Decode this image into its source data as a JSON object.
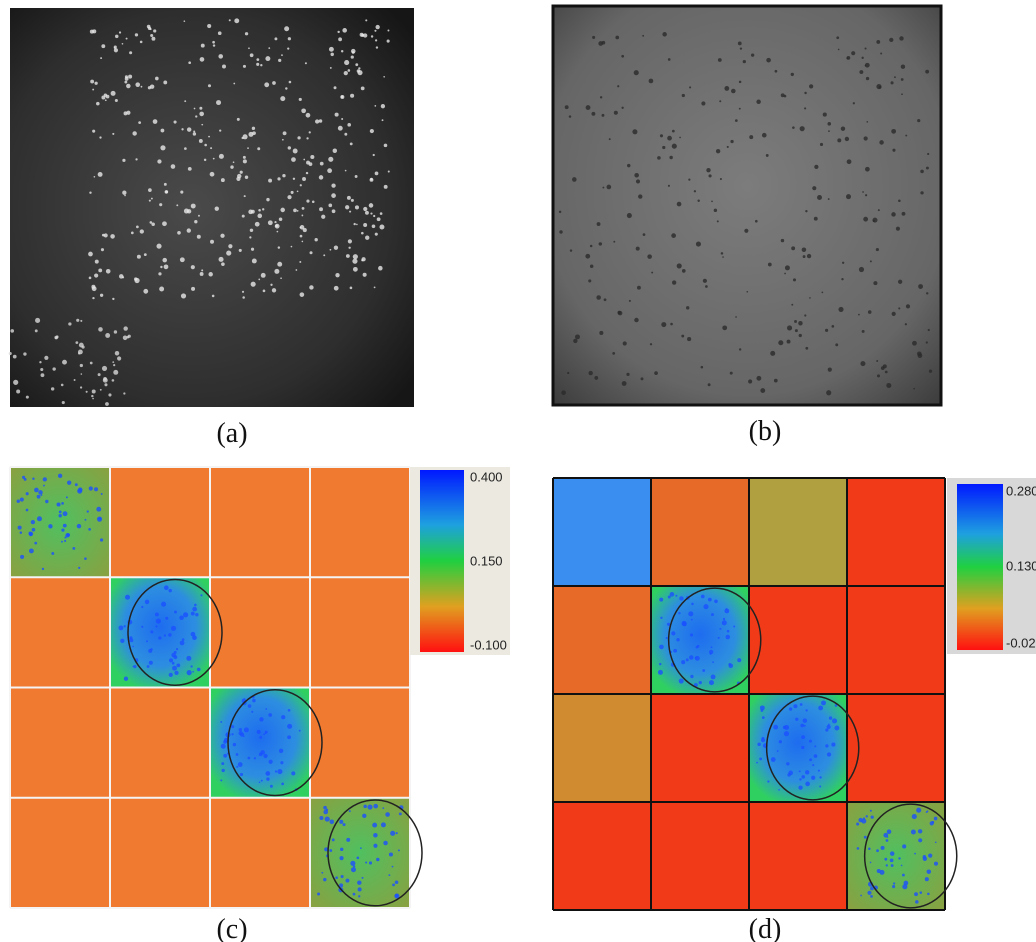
{
  "panels": [
    {
      "label": "(a)"
    },
    {
      "label": "(b)"
    },
    {
      "label": "(c)",
      "colorbar": {
        "labels": [
          "0.400",
          "0.150",
          "-0.100"
        ]
      }
    },
    {
      "label": "(d)",
      "colorbar": {
        "labels": [
          "0.280",
          "0.130",
          "-0.02"
        ]
      }
    }
  ]
}
